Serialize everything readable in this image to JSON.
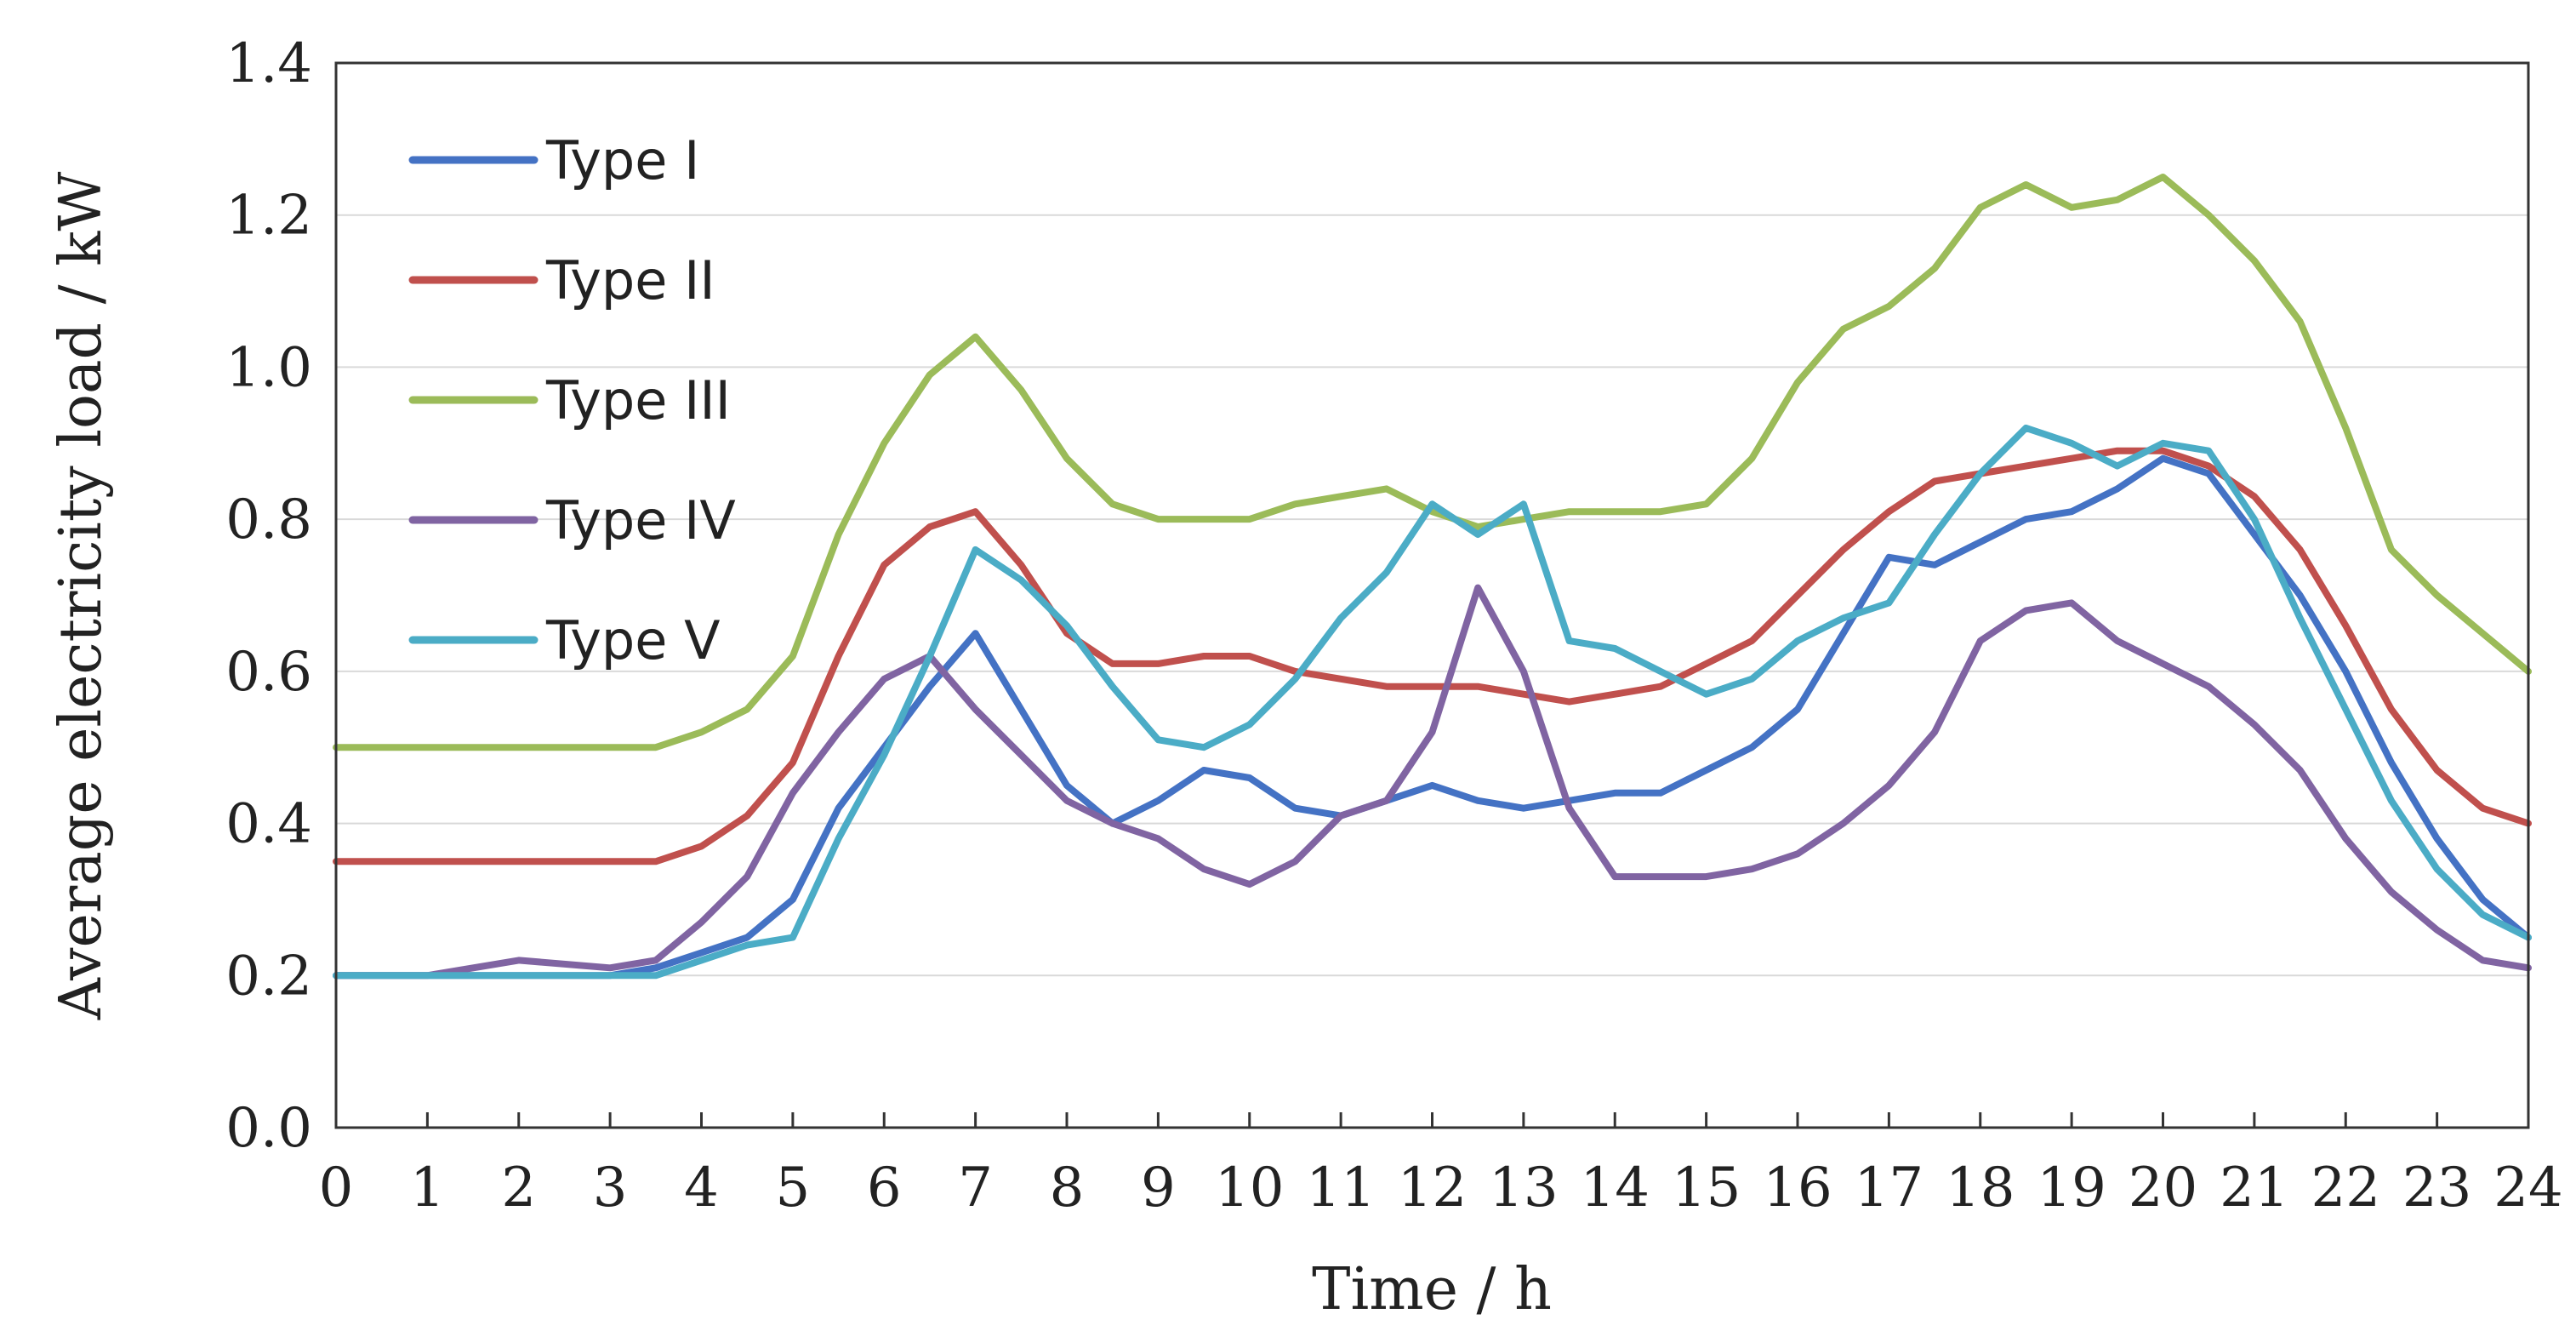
{
  "chart_data": {
    "type": "line",
    "title": "",
    "xlabel": "Time / h",
    "ylabel": "Average electricity load / kW",
    "xlim": [
      0,
      24
    ],
    "ylim": [
      0,
      1.4
    ],
    "xticks": [
      "0",
      "1",
      "2",
      "3",
      "4",
      "5",
      "6",
      "7",
      "8",
      "9",
      "10",
      "11",
      "12",
      "13",
      "14",
      "15",
      "16",
      "17",
      "18",
      "19",
      "20",
      "21",
      "22",
      "23",
      "24"
    ],
    "yticks": [
      "0.0",
      "0.2",
      "0.4",
      "0.6",
      "0.8",
      "1.0",
      "1.2",
      "1.4"
    ],
    "grid": true,
    "legend_position": "top-left",
    "x": [
      0,
      1,
      2,
      3,
      3.5,
      4,
      4.5,
      5,
      5.5,
      6,
      6.5,
      7,
      7.5,
      8,
      8.5,
      9,
      9.5,
      10,
      10.5,
      11,
      11.5,
      12,
      12.5,
      13,
      13.5,
      14,
      14.5,
      15,
      15.5,
      16,
      16.5,
      17,
      17.5,
      18,
      18.5,
      19,
      19.5,
      20,
      20.5,
      21,
      21.5,
      22,
      22.5,
      23,
      23.5,
      24
    ],
    "series": [
      {
        "name": "Type I",
        "color": "#4472C4",
        "values": [
          0.2,
          0.2,
          0.2,
          0.2,
          0.21,
          0.23,
          0.25,
          0.3,
          0.42,
          0.5,
          0.58,
          0.65,
          0.55,
          0.45,
          0.4,
          0.43,
          0.47,
          0.46,
          0.42,
          0.41,
          0.43,
          0.45,
          0.43,
          0.42,
          0.43,
          0.44,
          0.44,
          0.47,
          0.5,
          0.55,
          0.65,
          0.75,
          0.74,
          0.77,
          0.8,
          0.81,
          0.84,
          0.88,
          0.86,
          0.78,
          0.7,
          0.6,
          0.48,
          0.38,
          0.3,
          0.25
        ]
      },
      {
        "name": "Type II",
        "color": "#C0504D",
        "values": [
          0.35,
          0.35,
          0.35,
          0.35,
          0.35,
          0.37,
          0.41,
          0.48,
          0.62,
          0.74,
          0.79,
          0.81,
          0.74,
          0.65,
          0.61,
          0.61,
          0.62,
          0.62,
          0.6,
          0.59,
          0.58,
          0.58,
          0.58,
          0.57,
          0.56,
          0.57,
          0.58,
          0.61,
          0.64,
          0.7,
          0.76,
          0.81,
          0.85,
          0.86,
          0.87,
          0.88,
          0.89,
          0.89,
          0.87,
          0.83,
          0.76,
          0.66,
          0.55,
          0.47,
          0.42,
          0.4
        ]
      },
      {
        "name": "Type III",
        "color": "#9BBB59",
        "values": [
          0.5,
          0.5,
          0.5,
          0.5,
          0.5,
          0.52,
          0.55,
          0.62,
          0.78,
          0.9,
          0.99,
          1.04,
          0.97,
          0.88,
          0.82,
          0.8,
          0.8,
          0.8,
          0.82,
          0.83,
          0.84,
          0.81,
          0.79,
          0.8,
          0.81,
          0.81,
          0.81,
          0.82,
          0.88,
          0.98,
          1.05,
          1.08,
          1.13,
          1.21,
          1.24,
          1.21,
          1.22,
          1.25,
          1.2,
          1.14,
          1.06,
          0.92,
          0.76,
          0.7,
          0.65,
          0.6
        ]
      },
      {
        "name": "Type IV",
        "color": "#8064A2",
        "values": [
          0.2,
          0.2,
          0.22,
          0.21,
          0.22,
          0.27,
          0.33,
          0.44,
          0.52,
          0.59,
          0.62,
          0.55,
          0.49,
          0.43,
          0.4,
          0.38,
          0.34,
          0.32,
          0.35,
          0.41,
          0.43,
          0.52,
          0.71,
          0.6,
          0.42,
          0.33,
          0.33,
          0.33,
          0.34,
          0.36,
          0.4,
          0.45,
          0.52,
          0.64,
          0.68,
          0.69,
          0.64,
          0.61,
          0.58,
          0.53,
          0.47,
          0.38,
          0.31,
          0.26,
          0.22,
          0.21
        ]
      },
      {
        "name": "Type V",
        "color": "#4BACC6",
        "values": [
          0.2,
          0.2,
          0.2,
          0.2,
          0.2,
          0.22,
          0.24,
          0.25,
          0.38,
          0.49,
          0.62,
          0.76,
          0.72,
          0.66,
          0.58,
          0.51,
          0.5,
          0.53,
          0.59,
          0.67,
          0.73,
          0.82,
          0.78,
          0.82,
          0.64,
          0.63,
          0.6,
          0.57,
          0.59,
          0.64,
          0.67,
          0.69,
          0.78,
          0.86,
          0.92,
          0.9,
          0.87,
          0.9,
          0.89,
          0.8,
          0.67,
          0.55,
          0.43,
          0.34,
          0.28,
          0.25
        ]
      }
    ]
  }
}
